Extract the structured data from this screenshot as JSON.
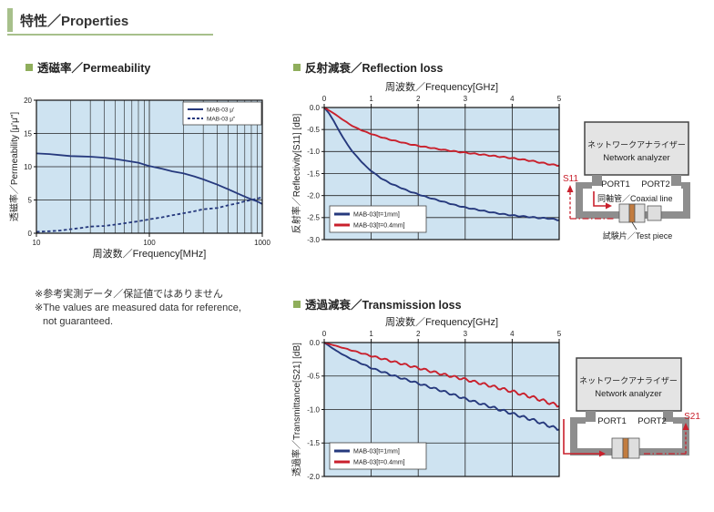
{
  "header": {
    "title": "特性／Properties"
  },
  "sections": {
    "permeability_title": "透磁率／Permeability",
    "reflection_title": "反射減衰／Reflection loss",
    "transmission_title": "透過減衰／Transmission loss"
  },
  "note": {
    "lines": [
      "※参考実測データ／保証値ではありません",
      "※The values are measured data for reference,",
      "not guaranteed."
    ]
  },
  "colors": {
    "accent_green": "#a7c08b",
    "bullet_green": "#8fae5c",
    "chart_bg": "#cee3f1",
    "grid": "#222222",
    "navy": "#26397d",
    "red": "#c9202c",
    "diagram_gray": "#8e8e8e",
    "analyzer_fill": "#e4e4e4",
    "analyzer_stroke": "#444444",
    "test_piece_orange": "#c27c3f"
  },
  "diagram_s11": {
    "analyzer_jp": "ネットワークアナライザー",
    "analyzer_en": "Network analyzer",
    "port1": "PORT1",
    "port2": "PORT2",
    "coax_label": "同軸管／Coaxial line",
    "test_piece_label": "試験片／Test piece",
    "s_label": "S11"
  },
  "diagram_s21": {
    "analyzer_jp": "ネットワークアナライザー",
    "analyzer_en": "Network analyzer",
    "port1": "PORT1",
    "port2": "PORT2",
    "s_label": "S21"
  },
  "chart_data": [
    {
      "id": "permeability",
      "type": "line",
      "title": "透磁率／Permeability",
      "xlabel": "周波数／Frequency[MHz]",
      "ylabel": "透磁率／Permeability [μ'μ\"]",
      "xscale": "log",
      "xlim": [
        10,
        1000
      ],
      "ylim": [
        0,
        20
      ],
      "xticks": [
        10,
        100,
        1000
      ],
      "xtick_labels": [
        "10",
        "100",
        "1000"
      ],
      "yticks": [
        0,
        5,
        10,
        15,
        20
      ],
      "ytick_labels": [
        "0",
        "5",
        "10",
        "15",
        "20"
      ],
      "grid": true,
      "legend_position": "top-right",
      "series": [
        {
          "name": "MAB-03 μ'",
          "color": "#26397d",
          "style": "solid",
          "noise": 0,
          "x": [
            10,
            13,
            16,
            20,
            25,
            30,
            40,
            50,
            60,
            80,
            100,
            130,
            160,
            200,
            250,
            300,
            400,
            500,
            600,
            700,
            800,
            900,
            1000
          ],
          "y": [
            12.0,
            11.9,
            11.75,
            11.6,
            11.55,
            11.5,
            11.35,
            11.15,
            10.95,
            10.6,
            10.1,
            9.7,
            9.3,
            9.0,
            8.55,
            8.1,
            7.3,
            6.6,
            6.0,
            5.5,
            5.1,
            4.8,
            4.4
          ]
        },
        {
          "name": "MAB-03 μ\"",
          "color": "#26397d",
          "style": "dashed",
          "noise": 0,
          "x": [
            10,
            13,
            16,
            20,
            25,
            30,
            40,
            50,
            60,
            80,
            100,
            130,
            160,
            200,
            250,
            300,
            400,
            500,
            600,
            700,
            800,
            900,
            1000
          ],
          "y": [
            0.2,
            0.3,
            0.4,
            0.6,
            0.8,
            1.0,
            1.1,
            1.3,
            1.5,
            1.8,
            2.1,
            2.4,
            2.7,
            3.0,
            3.3,
            3.6,
            3.8,
            4.2,
            4.5,
            4.8,
            5.0,
            5.2,
            5.4
          ]
        }
      ]
    },
    {
      "id": "reflection",
      "type": "line",
      "title": "反射減衰／Reflection loss",
      "xlabel": "周波数／Frequency[GHz]",
      "ylabel": "反射率／Reflectivity[S11] [dB]",
      "xscale": "linear",
      "xlim": [
        0,
        5
      ],
      "ylim": [
        -3.0,
        0.0
      ],
      "xticks": [
        0,
        1,
        2,
        3,
        4,
        5
      ],
      "xtick_labels": [
        "0",
        "1",
        "2",
        "3",
        "4",
        "5"
      ],
      "yticks": [
        0.0,
        -0.5,
        -1.0,
        -1.5,
        -2.0,
        -2.5,
        -3.0
      ],
      "ytick_labels": [
        "0.0",
        "-0.5",
        "-1.0",
        "-1.5",
        "-2.0",
        "-2.5",
        "-3.0"
      ],
      "grid": true,
      "legend_position": "bottom-left",
      "series": [
        {
          "name": "MAB-03[t=1mm]",
          "color": "#26397d",
          "style": "solid",
          "noise": 0.012,
          "x": [
            0,
            0.1,
            0.2,
            0.3,
            0.4,
            0.5,
            0.6,
            0.7,
            0.8,
            0.9,
            1.0,
            1.2,
            1.4,
            1.6,
            1.8,
            2.0,
            2.2,
            2.4,
            2.6,
            2.8,
            3.0,
            3.2,
            3.4,
            3.6,
            3.8,
            4.0,
            4.2,
            4.4,
            4.6,
            4.8,
            5.0
          ],
          "y": [
            0,
            -0.13,
            -0.3,
            -0.5,
            -0.68,
            -0.85,
            -1.0,
            -1.12,
            -1.24,
            -1.35,
            -1.44,
            -1.6,
            -1.72,
            -1.81,
            -1.9,
            -1.97,
            -2.04,
            -2.1,
            -2.16,
            -2.22,
            -2.27,
            -2.31,
            -2.35,
            -2.39,
            -2.42,
            -2.45,
            -2.47,
            -2.49,
            -2.51,
            -2.52,
            -2.56
          ]
        },
        {
          "name": "MAB-03[t=0.4mm]",
          "color": "#c9202c",
          "style": "solid",
          "noise": 0.014,
          "x": [
            0,
            0.2,
            0.4,
            0.6,
            0.8,
            1.0,
            1.2,
            1.4,
            1.6,
            1.8,
            2.0,
            2.4,
            2.8,
            3.2,
            3.6,
            4.0,
            4.4,
            4.8,
            5.0
          ],
          "y": [
            0,
            -0.13,
            -0.28,
            -0.42,
            -0.52,
            -0.6,
            -0.67,
            -0.73,
            -0.78,
            -0.83,
            -0.87,
            -0.94,
            -1.0,
            -1.05,
            -1.1,
            -1.15,
            -1.21,
            -1.29,
            -1.32
          ]
        }
      ]
    },
    {
      "id": "transmission",
      "type": "line",
      "title": "透過減衰／Transmission loss",
      "xlabel": "周波数／Frequency[GHz]",
      "ylabel": "透過率／Transmittance[S21] [dB]",
      "xscale": "linear",
      "xlim": [
        0,
        5
      ],
      "ylim": [
        -2.0,
        0.0
      ],
      "xticks": [
        0,
        1,
        2,
        3,
        4,
        5
      ],
      "xtick_labels": [
        "0",
        "1",
        "2",
        "3",
        "4",
        "5"
      ],
      "yticks": [
        0.0,
        -0.5,
        -1.0,
        -1.5,
        -2.0
      ],
      "ytick_labels": [
        "0.0",
        "-0.5",
        "-1.0",
        "-1.5",
        "-2.0"
      ],
      "grid": true,
      "legend_position": "bottom-left",
      "series": [
        {
          "name": "MAB-03[t=1mm]",
          "color": "#26397d",
          "style": "solid",
          "noise": 0.022,
          "x": [
            0,
            0.25,
            0.5,
            0.75,
            1.0,
            1.5,
            2.0,
            2.5,
            3.0,
            3.5,
            4.0,
            4.5,
            5.0
          ],
          "y": [
            0,
            -0.12,
            -0.22,
            -0.3,
            -0.38,
            -0.5,
            -0.61,
            -0.72,
            -0.84,
            -0.95,
            -1.06,
            -1.17,
            -1.3
          ]
        },
        {
          "name": "MAB-03[t=0.4mm]",
          "color": "#c9202c",
          "style": "solid",
          "noise": 0.025,
          "x": [
            0,
            0.25,
            0.5,
            0.75,
            1.0,
            1.5,
            2.0,
            2.5,
            3.0,
            3.5,
            4.0,
            4.5,
            5.0
          ],
          "y": [
            0,
            -0.05,
            -0.1,
            -0.15,
            -0.2,
            -0.29,
            -0.38,
            -0.47,
            -0.55,
            -0.64,
            -0.73,
            -0.83,
            -0.95
          ]
        }
      ]
    }
  ]
}
